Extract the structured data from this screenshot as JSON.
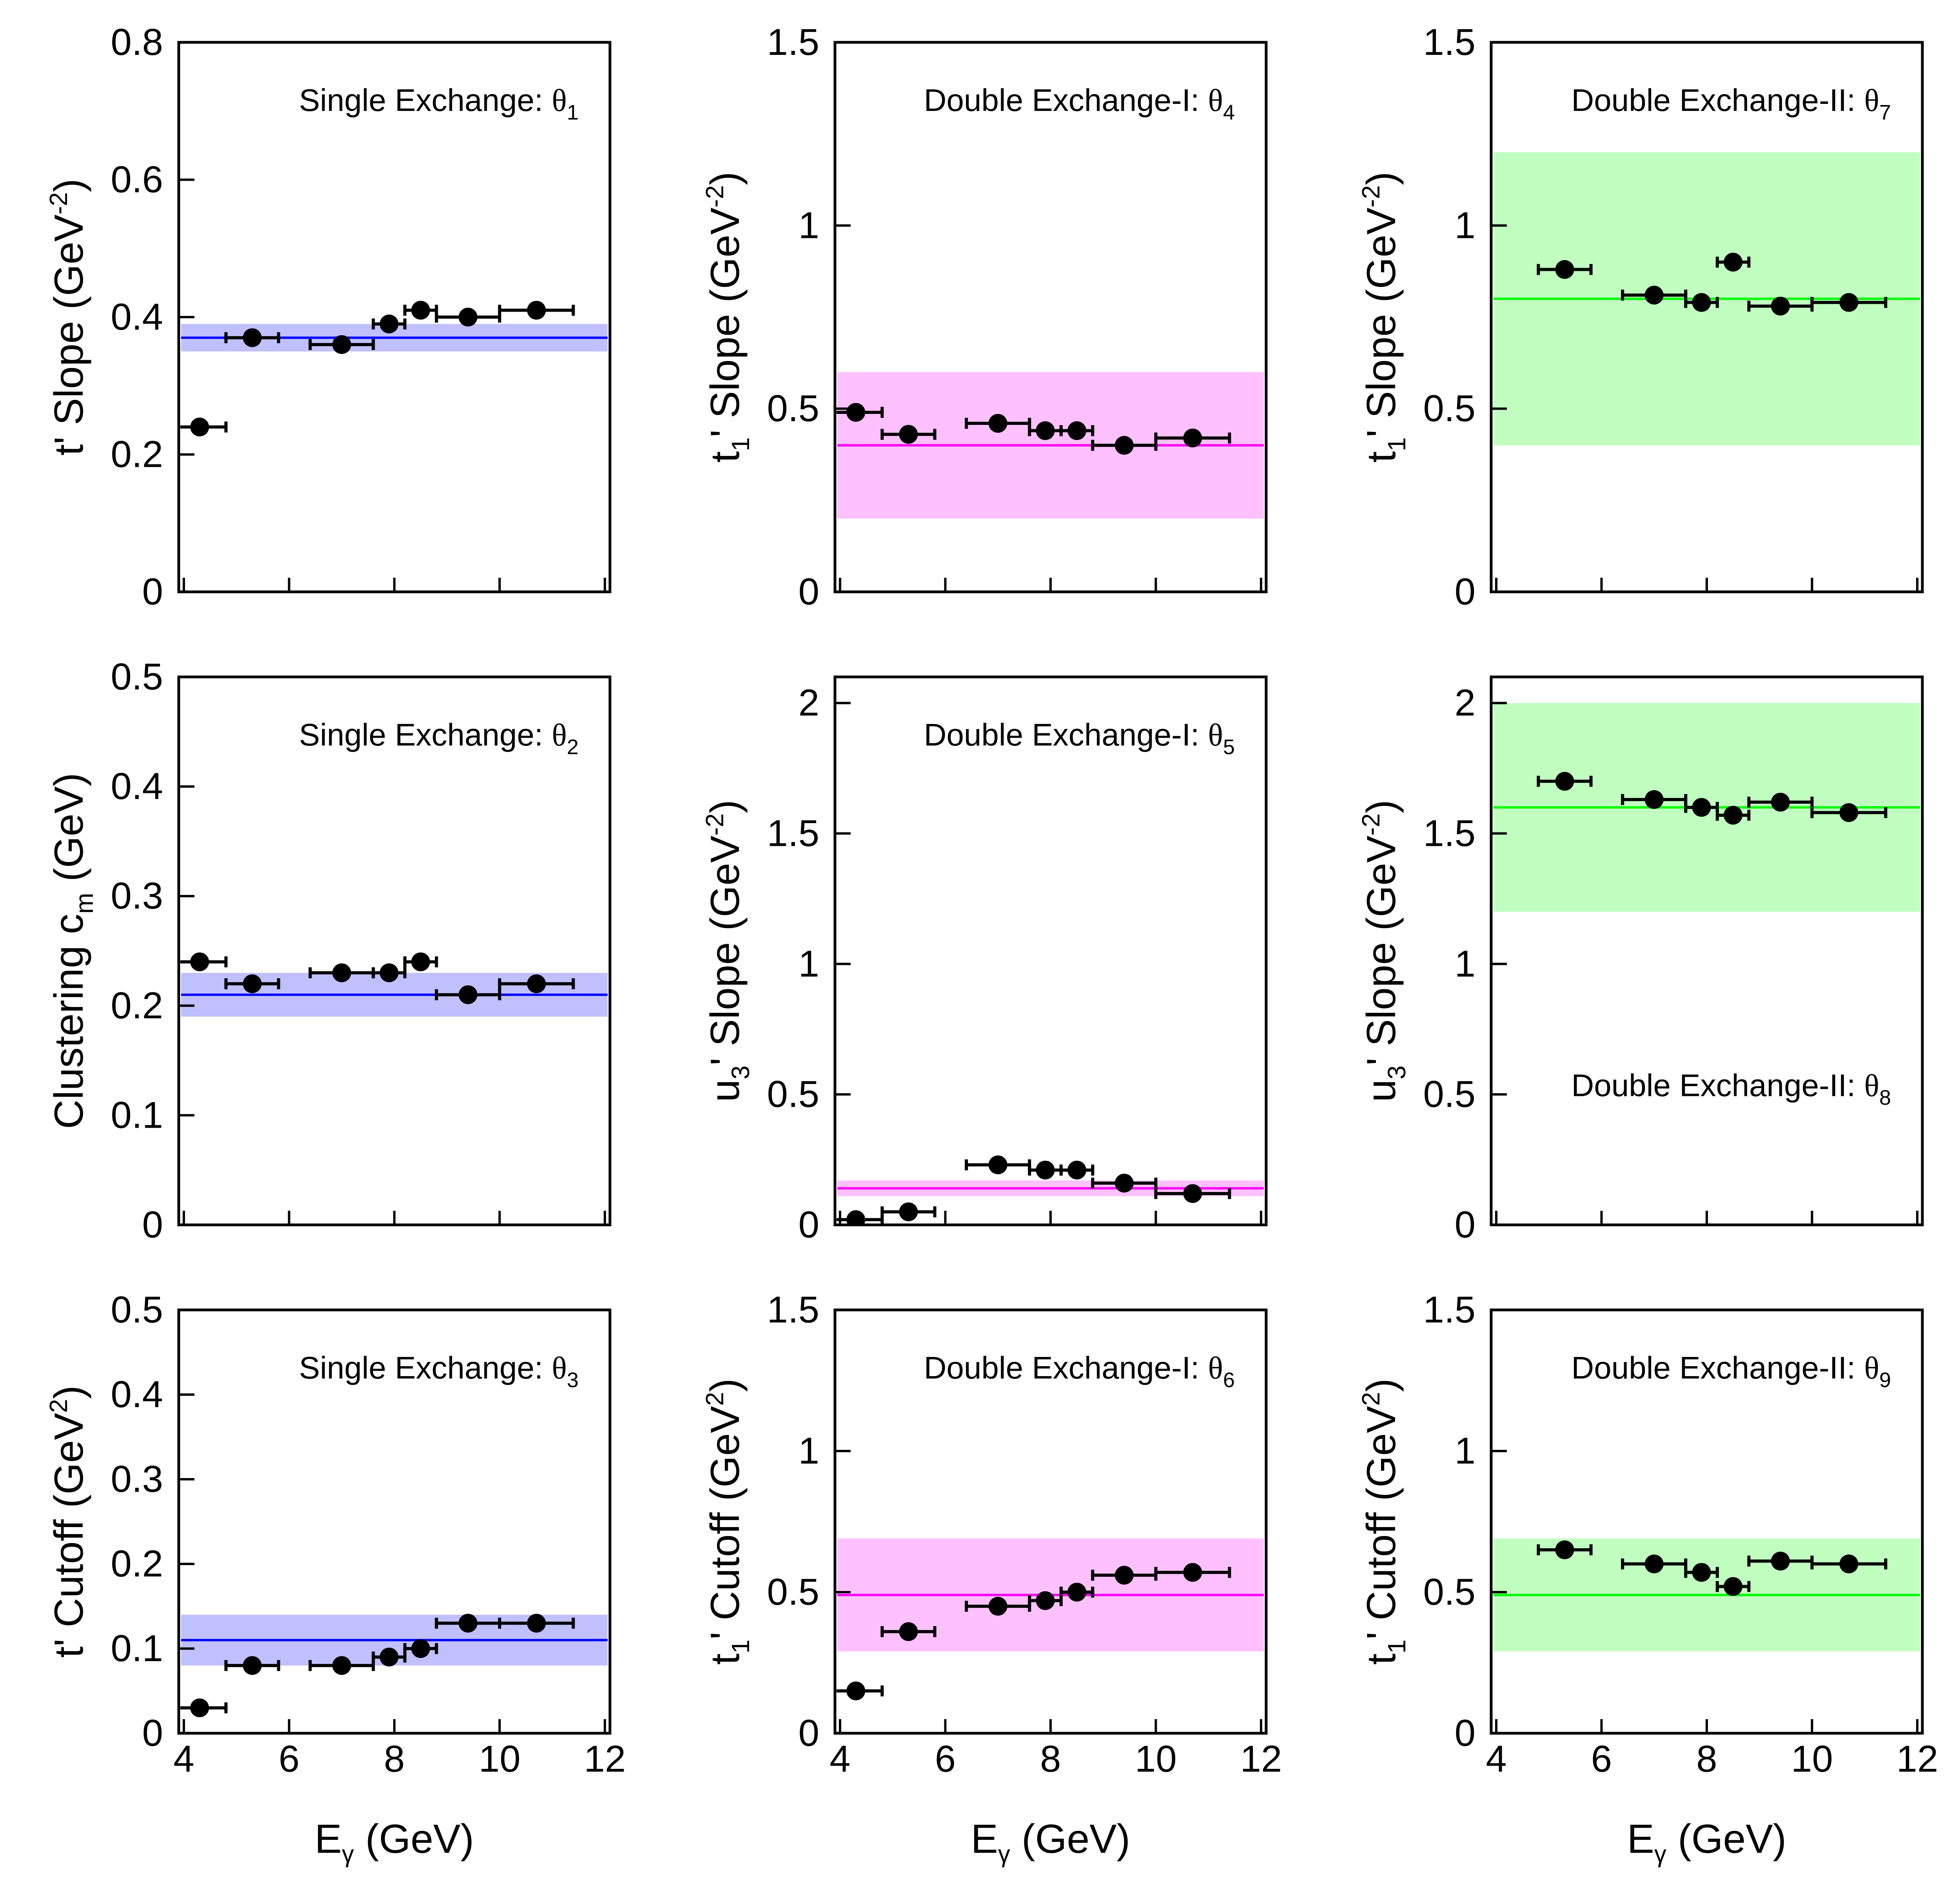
{
  "figure": {
    "x_axis": {
      "label_main": "E",
      "label_sub": "γ",
      "label_unit": " (GeV)",
      "range": [
        4,
        12
      ],
      "ticks": [
        4,
        6,
        8,
        10,
        12
      ],
      "tick_labels": [
        "4",
        "6",
        "8",
        "10",
        "12"
      ]
    },
    "marker_color": "#000000"
  },
  "chart_data": [
    {
      "type": "scatter",
      "title_main": "Single Exchange: ",
      "title_greek": "θ",
      "title_sub": "1",
      "ylabel_parts": [
        {
          "t": "t' Slope (GeV",
          "s": ""
        },
        {
          "t": "-2",
          "s": "sup"
        },
        {
          "t": ")",
          "s": ""
        }
      ],
      "ylim": [
        0,
        0.8
      ],
      "yticks": [
        0,
        0.2,
        0.4,
        0.6,
        0.8
      ],
      "ytick_labels": [
        "0",
        "0.2",
        "0.4",
        "0.6",
        "0.8"
      ],
      "fit": {
        "value": 0.37,
        "band": [
          0.35,
          0.39
        ],
        "line_color": "#0000FF",
        "band_color": "#C0C0FF"
      },
      "points": [
        {
          "x": 4.3,
          "xlo": 3.8,
          "xhi": 4.8,
          "y": 0.24
        },
        {
          "x": 5.3,
          "xlo": 4.8,
          "xhi": 5.8,
          "y": 0.37
        },
        {
          "x": 7.0,
          "xlo": 6.4,
          "xhi": 7.6,
          "y": 0.36
        },
        {
          "x": 7.9,
          "xlo": 7.6,
          "xhi": 8.2,
          "y": 0.39
        },
        {
          "x": 8.5,
          "xlo": 8.2,
          "xhi": 8.8,
          "y": 0.41
        },
        {
          "x": 9.4,
          "xlo": 8.8,
          "xhi": 10.0,
          "y": 0.4
        },
        {
          "x": 10.7,
          "xlo": 10.0,
          "xhi": 11.4,
          "y": 0.41
        }
      ]
    },
    {
      "type": "scatter",
      "title_main": "Double Exchange-I: ",
      "title_greek": "θ",
      "title_sub": "4",
      "ylabel_parts": [
        {
          "t": "t",
          "s": ""
        },
        {
          "t": "1",
          "s": "sub"
        },
        {
          "t": "' Slope (GeV",
          "s": ""
        },
        {
          "t": "-2",
          "s": "sup"
        },
        {
          "t": ")",
          "s": ""
        }
      ],
      "ylim": [
        0,
        1.5
      ],
      "yticks": [
        0,
        0.5,
        1,
        1.5
      ],
      "ytick_labels": [
        "0",
        "0.5",
        "1",
        "1.5"
      ],
      "fit": {
        "value": 0.4,
        "band": [
          0.2,
          0.6
        ],
        "line_color": "#FF00FF",
        "band_color": "#FFC0FF"
      },
      "points": [
        {
          "x": 4.3,
          "xlo": 3.8,
          "xhi": 4.8,
          "y": 0.49
        },
        {
          "x": 5.3,
          "xlo": 4.8,
          "xhi": 5.8,
          "y": 0.43
        },
        {
          "x": 7.0,
          "xlo": 6.4,
          "xhi": 7.6,
          "y": 0.46
        },
        {
          "x": 7.9,
          "xlo": 7.6,
          "xhi": 8.2,
          "y": 0.44
        },
        {
          "x": 8.5,
          "xlo": 8.2,
          "xhi": 8.8,
          "y": 0.44
        },
        {
          "x": 9.4,
          "xlo": 8.8,
          "xhi": 10.0,
          "y": 0.4
        },
        {
          "x": 10.7,
          "xlo": 10.0,
          "xhi": 11.4,
          "y": 0.42
        }
      ]
    },
    {
      "type": "scatter",
      "title_main": "Double Exchange-II: ",
      "title_greek": "θ",
      "title_sub": "7",
      "ylabel_parts": [
        {
          "t": "t",
          "s": ""
        },
        {
          "t": "1",
          "s": "sub"
        },
        {
          "t": "' Slope (GeV",
          "s": ""
        },
        {
          "t": "-2",
          "s": "sup"
        },
        {
          "t": ")",
          "s": ""
        }
      ],
      "ylim": [
        0,
        1.5
      ],
      "yticks": [
        0,
        0.5,
        1,
        1.5
      ],
      "ytick_labels": [
        "0",
        "0.5",
        "1",
        "1.5"
      ],
      "fit": {
        "value": 0.8,
        "band": [
          0.4,
          1.2
        ],
        "line_color": "#00FF00",
        "band_color": "#C0FFC0"
      },
      "points": [
        {
          "x": 5.3,
          "xlo": 4.8,
          "xhi": 5.8,
          "y": 0.88
        },
        {
          "x": 7.0,
          "xlo": 6.4,
          "xhi": 7.6,
          "y": 0.81
        },
        {
          "x": 7.9,
          "xlo": 7.6,
          "xhi": 8.2,
          "y": 0.79
        },
        {
          "x": 8.5,
          "xlo": 8.2,
          "xhi": 8.8,
          "y": 0.9
        },
        {
          "x": 9.4,
          "xlo": 8.8,
          "xhi": 10.0,
          "y": 0.78
        },
        {
          "x": 10.7,
          "xlo": 10.0,
          "xhi": 11.4,
          "y": 0.79
        }
      ]
    },
    {
      "type": "scatter",
      "title_main": "Single Exchange: ",
      "title_greek": "θ",
      "title_sub": "2",
      "ylabel_parts": [
        {
          "t": "Clustering c",
          "s": ""
        },
        {
          "t": "m",
          "s": "sub"
        },
        {
          "t": " (GeV)",
          "s": ""
        }
      ],
      "ylim": [
        0,
        0.5
      ],
      "yticks": [
        0,
        0.1,
        0.2,
        0.3,
        0.4,
        0.5
      ],
      "ytick_labels": [
        "0",
        "0.1",
        "0.2",
        "0.3",
        "0.4",
        "0.5"
      ],
      "fit": {
        "value": 0.21,
        "band": [
          0.19,
          0.23
        ],
        "line_color": "#0000FF",
        "band_color": "#C0C0FF"
      },
      "points": [
        {
          "x": 4.3,
          "xlo": 3.8,
          "xhi": 4.8,
          "y": 0.24
        },
        {
          "x": 5.3,
          "xlo": 4.8,
          "xhi": 5.8,
          "y": 0.22
        },
        {
          "x": 7.0,
          "xlo": 6.4,
          "xhi": 7.6,
          "y": 0.23
        },
        {
          "x": 7.9,
          "xlo": 7.6,
          "xhi": 8.2,
          "y": 0.23
        },
        {
          "x": 8.5,
          "xlo": 8.2,
          "xhi": 8.8,
          "y": 0.24
        },
        {
          "x": 9.4,
          "xlo": 8.8,
          "xhi": 10.0,
          "y": 0.21
        },
        {
          "x": 10.7,
          "xlo": 10.0,
          "xhi": 11.4,
          "y": 0.22
        }
      ]
    },
    {
      "type": "scatter",
      "title_main": "Double Exchange-I: ",
      "title_greek": "θ",
      "title_sub": "5",
      "ylabel_parts": [
        {
          "t": "u",
          "s": ""
        },
        {
          "t": "3",
          "s": "sub"
        },
        {
          "t": "' Slope (GeV",
          "s": ""
        },
        {
          "t": "-2",
          "s": "sup"
        },
        {
          "t": ")",
          "s": ""
        }
      ],
      "ylim": [
        0,
        2.1
      ],
      "yticks": [
        0,
        0.5,
        1,
        1.5,
        2
      ],
      "ytick_labels": [
        "0",
        "0.5",
        "1",
        "1.5",
        "2"
      ],
      "fit": {
        "value": 0.14,
        "band": [
          0.11,
          0.17
        ],
        "line_color": "#FF00FF",
        "band_color": "#FFC0FF"
      },
      "points": [
        {
          "x": 4.3,
          "xlo": 3.8,
          "xhi": 4.8,
          "y": 0.02
        },
        {
          "x": 5.3,
          "xlo": 4.8,
          "xhi": 5.8,
          "y": 0.05
        },
        {
          "x": 7.0,
          "xlo": 6.4,
          "xhi": 7.6,
          "y": 0.23
        },
        {
          "x": 7.9,
          "xlo": 7.6,
          "xhi": 8.2,
          "y": 0.21
        },
        {
          "x": 8.5,
          "xlo": 8.2,
          "xhi": 8.8,
          "y": 0.21
        },
        {
          "x": 9.4,
          "xlo": 8.8,
          "xhi": 10.0,
          "y": 0.16
        },
        {
          "x": 10.7,
          "xlo": 10.0,
          "xhi": 11.4,
          "y": 0.12
        }
      ]
    },
    {
      "type": "scatter",
      "title_main": "Double Exchange-II: ",
      "title_greek": "θ",
      "title_sub": "8",
      "title_position": "bottom",
      "ylabel_parts": [
        {
          "t": "u",
          "s": ""
        },
        {
          "t": "3",
          "s": "sub"
        },
        {
          "t": "' Slope (GeV",
          "s": ""
        },
        {
          "t": "-2",
          "s": "sup"
        },
        {
          "t": ")",
          "s": ""
        }
      ],
      "ylim": [
        0,
        2.1
      ],
      "yticks": [
        0,
        0.5,
        1,
        1.5,
        2
      ],
      "ytick_labels": [
        "0",
        "0.5",
        "1",
        "1.5",
        "2"
      ],
      "fit": {
        "value": 1.6,
        "band": [
          1.2,
          2.0
        ],
        "line_color": "#00FF00",
        "band_color": "#C0FFC0"
      },
      "points": [
        {
          "x": 5.3,
          "xlo": 4.8,
          "xhi": 5.8,
          "y": 1.7
        },
        {
          "x": 7.0,
          "xlo": 6.4,
          "xhi": 7.6,
          "y": 1.63
        },
        {
          "x": 7.9,
          "xlo": 7.6,
          "xhi": 8.2,
          "y": 1.6
        },
        {
          "x": 8.5,
          "xlo": 8.2,
          "xhi": 8.8,
          "y": 1.57
        },
        {
          "x": 9.4,
          "xlo": 8.8,
          "xhi": 10.0,
          "y": 1.62
        },
        {
          "x": 10.7,
          "xlo": 10.0,
          "xhi": 11.4,
          "y": 1.58
        }
      ]
    },
    {
      "type": "scatter",
      "title_main": "Single Exchange: ",
      "title_greek": "θ",
      "title_sub": "3",
      "ylabel_parts": [
        {
          "t": "t' Cutoff (GeV",
          "s": ""
        },
        {
          "t": "2",
          "s": "sup"
        },
        {
          "t": ")",
          "s": ""
        }
      ],
      "ylim": [
        0,
        0.5
      ],
      "yticks": [
        0,
        0.1,
        0.2,
        0.3,
        0.4,
        0.5
      ],
      "ytick_labels": [
        "0",
        "0.1",
        "0.2",
        "0.3",
        "0.4",
        "0.5"
      ],
      "fit": {
        "value": 0.11,
        "band": [
          0.08,
          0.14
        ],
        "line_color": "#0000FF",
        "band_color": "#C0C0FF"
      },
      "points": [
        {
          "x": 4.3,
          "xlo": 3.8,
          "xhi": 4.8,
          "y": 0.03
        },
        {
          "x": 5.3,
          "xlo": 4.8,
          "xhi": 5.8,
          "y": 0.08
        },
        {
          "x": 7.0,
          "xlo": 6.4,
          "xhi": 7.6,
          "y": 0.08
        },
        {
          "x": 7.9,
          "xlo": 7.6,
          "xhi": 8.2,
          "y": 0.09
        },
        {
          "x": 8.5,
          "xlo": 8.2,
          "xhi": 8.8,
          "y": 0.1
        },
        {
          "x": 9.4,
          "xlo": 8.8,
          "xhi": 10.0,
          "y": 0.13
        },
        {
          "x": 10.7,
          "xlo": 10.0,
          "xhi": 11.4,
          "y": 0.13
        }
      ]
    },
    {
      "type": "scatter",
      "title_main": "Double Exchange-I: ",
      "title_greek": "θ",
      "title_sub": "6",
      "ylabel_parts": [
        {
          "t": "t",
          "s": ""
        },
        {
          "t": "1",
          "s": "sub"
        },
        {
          "t": "' Cutoff (GeV",
          "s": ""
        },
        {
          "t": "2",
          "s": "sup"
        },
        {
          "t": ")",
          "s": ""
        }
      ],
      "ylim": [
        0,
        1.5
      ],
      "yticks": [
        0,
        0.5,
        1,
        1.5
      ],
      "ytick_labels": [
        "0",
        "0.5",
        "1",
        "1.5"
      ],
      "fit": {
        "value": 0.49,
        "band": [
          0.29,
          0.69
        ],
        "line_color": "#FF00FF",
        "band_color": "#FFC0FF"
      },
      "points": [
        {
          "x": 4.3,
          "xlo": 3.8,
          "xhi": 4.8,
          "y": 0.15
        },
        {
          "x": 5.3,
          "xlo": 4.8,
          "xhi": 5.8,
          "y": 0.36
        },
        {
          "x": 7.0,
          "xlo": 6.4,
          "xhi": 7.6,
          "y": 0.45
        },
        {
          "x": 7.9,
          "xlo": 7.6,
          "xhi": 8.2,
          "y": 0.47
        },
        {
          "x": 8.5,
          "xlo": 8.2,
          "xhi": 8.8,
          "y": 0.5
        },
        {
          "x": 9.4,
          "xlo": 8.8,
          "xhi": 10.0,
          "y": 0.56
        },
        {
          "x": 10.7,
          "xlo": 10.0,
          "xhi": 11.4,
          "y": 0.57
        }
      ]
    },
    {
      "type": "scatter",
      "title_main": "Double Exchange-II: ",
      "title_greek": "θ",
      "title_sub": "9",
      "ylabel_parts": [
        {
          "t": "t",
          "s": ""
        },
        {
          "t": "1",
          "s": "sub"
        },
        {
          "t": "' Cutoff (GeV",
          "s": ""
        },
        {
          "t": "2",
          "s": "sup"
        },
        {
          "t": ")",
          "s": ""
        }
      ],
      "ylim": [
        0,
        1.5
      ],
      "yticks": [
        0,
        0.5,
        1,
        1.5
      ],
      "ytick_labels": [
        "0",
        "0.5",
        "1",
        "1.5"
      ],
      "fit": {
        "value": 0.49,
        "band": [
          0.29,
          0.69
        ],
        "line_color": "#00FF00",
        "band_color": "#C0FFC0"
      },
      "points": [
        {
          "x": 5.3,
          "xlo": 4.8,
          "xhi": 5.8,
          "y": 0.65
        },
        {
          "x": 7.0,
          "xlo": 6.4,
          "xhi": 7.6,
          "y": 0.6
        },
        {
          "x": 7.9,
          "xlo": 7.6,
          "xhi": 8.2,
          "y": 0.57
        },
        {
          "x": 8.5,
          "xlo": 8.2,
          "xhi": 8.8,
          "y": 0.52
        },
        {
          "x": 9.4,
          "xlo": 8.8,
          "xhi": 10.0,
          "y": 0.61
        },
        {
          "x": 10.7,
          "xlo": 10.0,
          "xhi": 11.4,
          "y": 0.6
        }
      ]
    }
  ]
}
